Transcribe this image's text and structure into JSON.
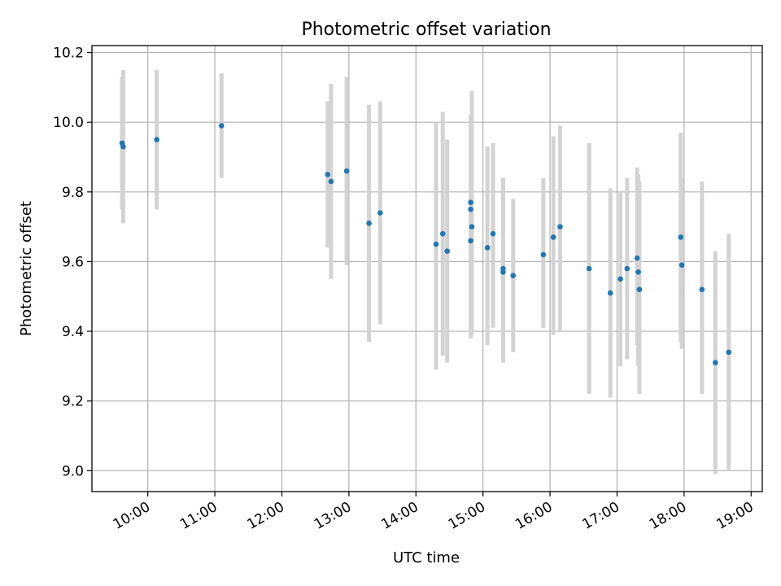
{
  "chart_data": {
    "type": "scatter",
    "title": "Photometric offset variation",
    "xlabel": "UTC time",
    "ylabel": "Photometric offset",
    "xlim": [
      "09:10",
      "19:10"
    ],
    "ylim": [
      8.94,
      10.22
    ],
    "x_ticks": [
      "10:00",
      "11:00",
      "12:00",
      "13:00",
      "14:00",
      "15:00",
      "16:00",
      "17:00",
      "18:00",
      "19:00"
    ],
    "y_ticks": [
      "9.0",
      "9.2",
      "9.4",
      "9.6",
      "9.8",
      "10.0",
      "10.2"
    ],
    "grid": true,
    "marker_color": "#1f77b4",
    "errorbar_color": "#d3d3d3",
    "points": [
      {
        "t": "09:37",
        "y": 9.94,
        "lo": 9.75,
        "hi": 10.13
      },
      {
        "t": "09:38",
        "y": 9.93,
        "lo": 9.71,
        "hi": 10.15
      },
      {
        "t": "10:08",
        "y": 9.95,
        "lo": 9.75,
        "hi": 10.15
      },
      {
        "t": "11:06",
        "y": 9.99,
        "lo": 9.84,
        "hi": 10.14
      },
      {
        "t": "12:41",
        "y": 9.85,
        "lo": 9.64,
        "hi": 10.06
      },
      {
        "t": "12:44",
        "y": 9.83,
        "lo": 9.55,
        "hi": 10.11
      },
      {
        "t": "12:58",
        "y": 9.86,
        "lo": 9.59,
        "hi": 10.13
      },
      {
        "t": "13:18",
        "y": 9.71,
        "lo": 9.37,
        "hi": 10.05
      },
      {
        "t": "13:28",
        "y": 9.74,
        "lo": 9.42,
        "hi": 10.06
      },
      {
        "t": "14:18",
        "y": 9.65,
        "lo": 9.29,
        "hi": 10.0
      },
      {
        "t": "14:24",
        "y": 9.68,
        "lo": 9.33,
        "hi": 10.03
      },
      {
        "t": "14:28",
        "y": 9.63,
        "lo": 9.31,
        "hi": 9.95
      },
      {
        "t": "14:49",
        "y": 9.77,
        "lo": 9.4,
        "hi": 10.0
      },
      {
        "t": "14:49",
        "y": 9.75,
        "lo": 9.38,
        "hi": 9.96
      },
      {
        "t": "14:50",
        "y": 9.7,
        "lo": 9.39,
        "hi": 10.09
      },
      {
        "t": "14:49",
        "y": 9.66,
        "lo": 9.38,
        "hi": 10.02
      },
      {
        "t": "15:04",
        "y": 9.64,
        "lo": 9.36,
        "hi": 9.93
      },
      {
        "t": "15:09",
        "y": 9.68,
        "lo": 9.41,
        "hi": 9.94
      },
      {
        "t": "15:18",
        "y": 9.58,
        "lo": 9.32,
        "hi": 9.84
      },
      {
        "t": "15:18",
        "y": 9.57,
        "lo": 9.31,
        "hi": 9.84
      },
      {
        "t": "15:27",
        "y": 9.56,
        "lo": 9.34,
        "hi": 9.78
      },
      {
        "t": "15:54",
        "y": 9.62,
        "lo": 9.41,
        "hi": 9.84
      },
      {
        "t": "16:03",
        "y": 9.67,
        "lo": 9.39,
        "hi": 9.96
      },
      {
        "t": "16:09",
        "y": 9.7,
        "lo": 9.4,
        "hi": 9.99
      },
      {
        "t": "16:35",
        "y": 9.58,
        "lo": 9.22,
        "hi": 9.94
      },
      {
        "t": "16:54",
        "y": 9.51,
        "lo": 9.21,
        "hi": 9.81
      },
      {
        "t": "17:03",
        "y": 9.55,
        "lo": 9.3,
        "hi": 9.8
      },
      {
        "t": "17:09",
        "y": 9.58,
        "lo": 9.32,
        "hi": 9.84
      },
      {
        "t": "17:18",
        "y": 9.61,
        "lo": 9.36,
        "hi": 9.87
      },
      {
        "t": "17:19",
        "y": 9.57,
        "lo": 9.3,
        "hi": 9.85
      },
      {
        "t": "17:20",
        "y": 9.52,
        "lo": 9.22,
        "hi": 9.83
      },
      {
        "t": "17:57",
        "y": 9.67,
        "lo": 9.37,
        "hi": 9.97
      },
      {
        "t": "17:58",
        "y": 9.59,
        "lo": 9.35,
        "hi": 9.84
      },
      {
        "t": "18:16",
        "y": 9.52,
        "lo": 9.22,
        "hi": 9.83
      },
      {
        "t": "18:28",
        "y": 9.31,
        "lo": 8.99,
        "hi": 9.63
      },
      {
        "t": "18:40",
        "y": 9.34,
        "lo": 9.0,
        "hi": 9.68
      }
    ]
  }
}
